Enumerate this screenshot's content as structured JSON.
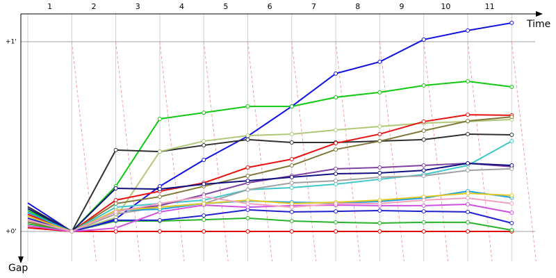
{
  "chart_data": {
    "type": "line",
    "x_label": "Time",
    "y_label": "Gap",
    "x": [
      0.5,
      1.5,
      2.5,
      3.5,
      4.5,
      5.5,
      6.5,
      7.5,
      8.5,
      9.5,
      10.5,
      11.5
    ],
    "xlim": [
      0.5,
      12.2
    ],
    "xticks": [
      1,
      2,
      3,
      4,
      5,
      6,
      7,
      8,
      9,
      10,
      11
    ],
    "ylim": [
      -0.15,
      1.15
    ],
    "yticks": [
      {
        "value": 0,
        "label": "+0'"
      },
      {
        "value": 1,
        "label": "+1'"
      }
    ],
    "grid": true,
    "series": [
      {
        "color": "#e00000",
        "values": [
          0.02,
          0,
          0,
          0,
          0,
          0,
          0,
          0,
          0,
          0,
          0,
          0
        ]
      },
      {
        "color": "#1010e0",
        "values": [
          0.15,
          0,
          0.066,
          0.238,
          0.377,
          0.502,
          0.659,
          0.832,
          0.894,
          1.011,
          1.059,
          1.099
        ]
      },
      {
        "color": "#10c810",
        "values": [
          0.11,
          0,
          0.238,
          0.593,
          0.626,
          0.659,
          0.659,
          0.707,
          0.733,
          0.769,
          0.791,
          0.762
        ]
      },
      {
        "color": "#303030",
        "values": [
          0.13,
          0,
          0.429,
          0.421,
          0.454,
          0.484,
          0.469,
          0.469,
          0.476,
          0.484,
          0.513,
          0.509
        ]
      },
      {
        "color": "#b0c878",
        "values": [
          0.06,
          0,
          0.073,
          0.421,
          0.476,
          0.505,
          0.513,
          0.535,
          0.553,
          0.571,
          0.579,
          0.59
        ]
      },
      {
        "color": "#e81010",
        "values": [
          0.09,
          0,
          0.165,
          0.212,
          0.256,
          0.337,
          0.381,
          0.465,
          0.513,
          0.579,
          0.615,
          0.612
        ]
      },
      {
        "color": "#807838",
        "values": [
          0.05,
          0,
          0.147,
          0.183,
          0.238,
          0.293,
          0.348,
          0.432,
          0.476,
          0.531,
          0.582,
          0.604
        ]
      },
      {
        "color": "#40c8c8",
        "values": [
          0.08,
          0,
          0.128,
          0.147,
          0.165,
          0.22,
          0.231,
          0.249,
          0.275,
          0.3,
          0.348,
          0.476
        ]
      },
      {
        "color": "#8040a0",
        "values": [
          0.1,
          0,
          0.11,
          0.136,
          0.194,
          0.256,
          0.293,
          0.33,
          0.337,
          0.348,
          0.359,
          0.341
        ]
      },
      {
        "color": "#101080",
        "values": [
          0.12,
          0,
          0.227,
          0.223,
          0.249,
          0.267,
          0.286,
          0.304,
          0.308,
          0.322,
          0.359,
          0.348
        ]
      },
      {
        "color": "#a0a0a0",
        "values": [
          0.1,
          0,
          0.092,
          0.128,
          0.147,
          0.22,
          0.256,
          0.267,
          0.286,
          0.293,
          0.322,
          0.33
        ]
      },
      {
        "color": "#28b428",
        "values": [
          0.04,
          0,
          0.055,
          0.055,
          0.062,
          0.07,
          0.055,
          0.048,
          0.044,
          0.048,
          0.048,
          0.007
        ]
      },
      {
        "color": "#2020d0",
        "values": [
          0.07,
          0,
          0.059,
          0.059,
          0.084,
          0.114,
          0.103,
          0.106,
          0.11,
          0.106,
          0.103,
          0.044
        ]
      },
      {
        "color": "#d050e0",
        "values": [
          0.03,
          0,
          0.018,
          0.103,
          0.139,
          0.128,
          0.136,
          0.139,
          0.136,
          0.136,
          0.143,
          0.099
        ]
      },
      {
        "color": "#20a0e0",
        "values": [
          0.1,
          0,
          0.11,
          0.117,
          0.147,
          0.161,
          0.154,
          0.15,
          0.158,
          0.176,
          0.212,
          0.179
        ]
      },
      {
        "color": "#e0c820",
        "values": [
          0.08,
          0,
          0.11,
          0.128,
          0.147,
          0.165,
          0.147,
          0.154,
          0.165,
          0.183,
          0.201,
          0.19
        ]
      },
      {
        "color": "#f0a0c0",
        "values": [
          0.06,
          0,
          0.103,
          0.147,
          0.183,
          0.147,
          0.128,
          0.147,
          0.147,
          0.165,
          0.176,
          0.147
        ]
      }
    ]
  }
}
